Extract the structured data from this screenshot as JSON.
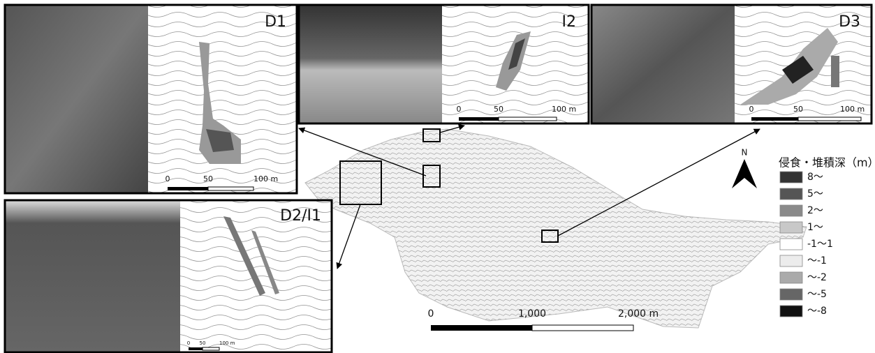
{
  "panels": [
    {
      "label": "D1",
      "scale": [
        "0",
        "50",
        "100 m"
      ]
    },
    {
      "label": "I2",
      "scale": [
        "0",
        "50",
        "100 m"
      ]
    },
    {
      "label": "D3",
      "scale": [
        "0",
        "50",
        "100 m"
      ]
    },
    {
      "label": "D2/I1",
      "scale": [
        "0",
        "50",
        "100 m"
      ]
    }
  ],
  "north": "N",
  "scale_bar": [
    "0",
    "1,000",
    "2,000 m"
  ],
  "legend": {
    "title": "侵食・堆積深（m）",
    "items": [
      {
        "label": "8〜",
        "color": "#333333"
      },
      {
        "label": "5〜",
        "color": "#555555"
      },
      {
        "label": "2〜",
        "color": "#8a8a8a"
      },
      {
        "label": "1〜",
        "color": "#c8c8c8"
      },
      {
        "label": "-1〜1",
        "color": "#ffffff"
      },
      {
        "label": "〜-1",
        "color": "#ececec"
      },
      {
        "label": "〜-2",
        "color": "#aaaaaa"
      },
      {
        "label": "〜-5",
        "color": "#666666"
      },
      {
        "label": "〜-8",
        "color": "#111111"
      }
    ]
  }
}
